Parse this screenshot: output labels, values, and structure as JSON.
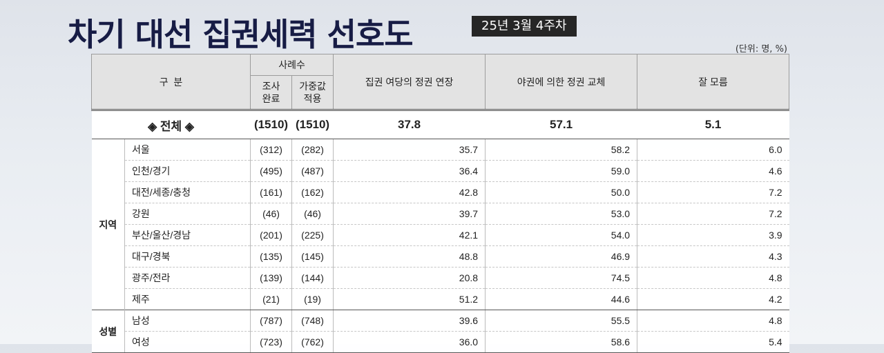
{
  "title": "차기 대선 집권세력 선호도",
  "date_badge": "25년 3월 4주차",
  "unit": "(단위: 명, %)",
  "headers": {
    "category": "구  분",
    "sample_count": "사례수",
    "surveyed": "조사\n완료",
    "weighted": "가중값\n적용",
    "extend": "집권 여당의 정권 연장",
    "change": "야권에 의한 정권 교체",
    "unknown": "잘 모름"
  },
  "total": {
    "label": "◈ 전체 ◈",
    "surveyed": "(1510)",
    "weighted": "(1510)",
    "extend": "37.8",
    "change": "57.1",
    "unknown": "5.1"
  },
  "groups": {
    "region": {
      "label": "지역",
      "rows": [
        {
          "name": "서울",
          "surveyed": "(312)",
          "weighted": "(282)",
          "extend": "35.7",
          "change": "58.2",
          "unknown": "6.0"
        },
        {
          "name": "인천/경기",
          "surveyed": "(495)",
          "weighted": "(487)",
          "extend": "36.4",
          "change": "59.0",
          "unknown": "4.6"
        },
        {
          "name": "대전/세종/충청",
          "surveyed": "(161)",
          "weighted": "(162)",
          "extend": "42.8",
          "change": "50.0",
          "unknown": "7.2"
        },
        {
          "name": "강원",
          "surveyed": "(46)",
          "weighted": "(46)",
          "extend": "39.7",
          "change": "53.0",
          "unknown": "7.2"
        },
        {
          "name": "부산/울산/경남",
          "surveyed": "(201)",
          "weighted": "(225)",
          "extend": "42.1",
          "change": "54.0",
          "unknown": "3.9"
        },
        {
          "name": "대구/경북",
          "surveyed": "(135)",
          "weighted": "(145)",
          "extend": "48.8",
          "change": "46.9",
          "unknown": "4.3"
        },
        {
          "name": "광주/전라",
          "surveyed": "(139)",
          "weighted": "(144)",
          "extend": "20.8",
          "change": "74.5",
          "unknown": "4.8"
        },
        {
          "name": "제주",
          "surveyed": "(21)",
          "weighted": "(19)",
          "extend": "51.2",
          "change": "44.6",
          "unknown": "4.2"
        }
      ]
    },
    "sex": {
      "label": "성별",
      "rows": [
        {
          "name": "남성",
          "surveyed": "(787)",
          "weighted": "(748)",
          "extend": "39.6",
          "change": "55.5",
          "unknown": "4.8"
        },
        {
          "name": "여성",
          "surveyed": "(723)",
          "weighted": "(762)",
          "extend": "36.0",
          "change": "58.6",
          "unknown": "5.4"
        }
      ]
    }
  }
}
